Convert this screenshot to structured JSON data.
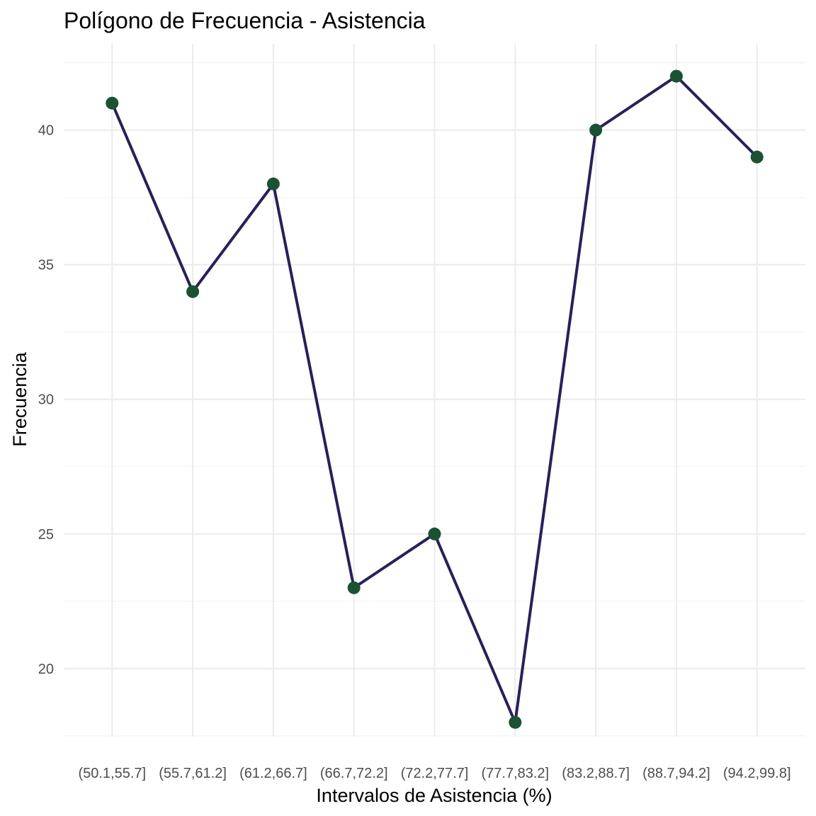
{
  "chart_data": {
    "type": "line",
    "title": "Polígono de Frecuencia - Asistencia",
    "xlabel": "Intervalos de Asistencia (%)",
    "ylabel": "Frecuencia",
    "categories": [
      "(50.1,55.7]",
      "(55.7,61.2]",
      "(61.2,66.7]",
      "(66.7,72.2]",
      "(72.2,77.7]",
      "(77.7,83.2]",
      "(83.2,88.7]",
      "(88.7,94.2]",
      "(94.2,99.8]"
    ],
    "values": [
      41,
      34,
      38,
      23,
      25,
      18,
      40,
      42,
      39
    ],
    "yticks": [
      20,
      25,
      30,
      35,
      40
    ],
    "ylim": [
      17.47,
      43.2
    ],
    "grid": true,
    "line_color": "#2a1f5a",
    "point_color": "#1a5232"
  }
}
